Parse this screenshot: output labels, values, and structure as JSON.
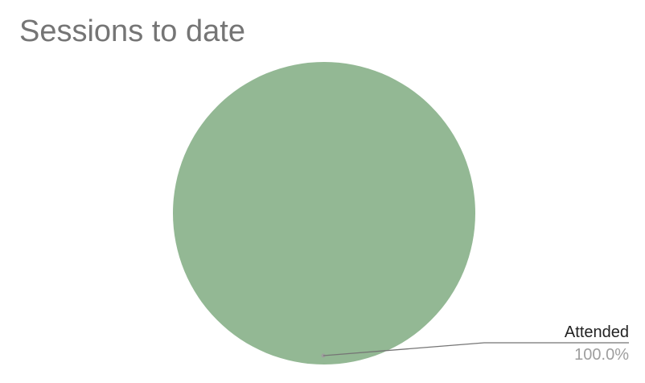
{
  "chart_data": {
    "type": "pie",
    "title": "Sessions to date",
    "slices": [
      {
        "label": "Attended",
        "value": 100.0,
        "percent_label": "100.0%",
        "color": "#93b894"
      }
    ],
    "legend": "none",
    "data_labels": "outside-with-leader-line"
  },
  "colors": {
    "title": "#757575",
    "leader_line": "#757575",
    "label_name": "#222222",
    "label_value": "#9e9e9e"
  }
}
